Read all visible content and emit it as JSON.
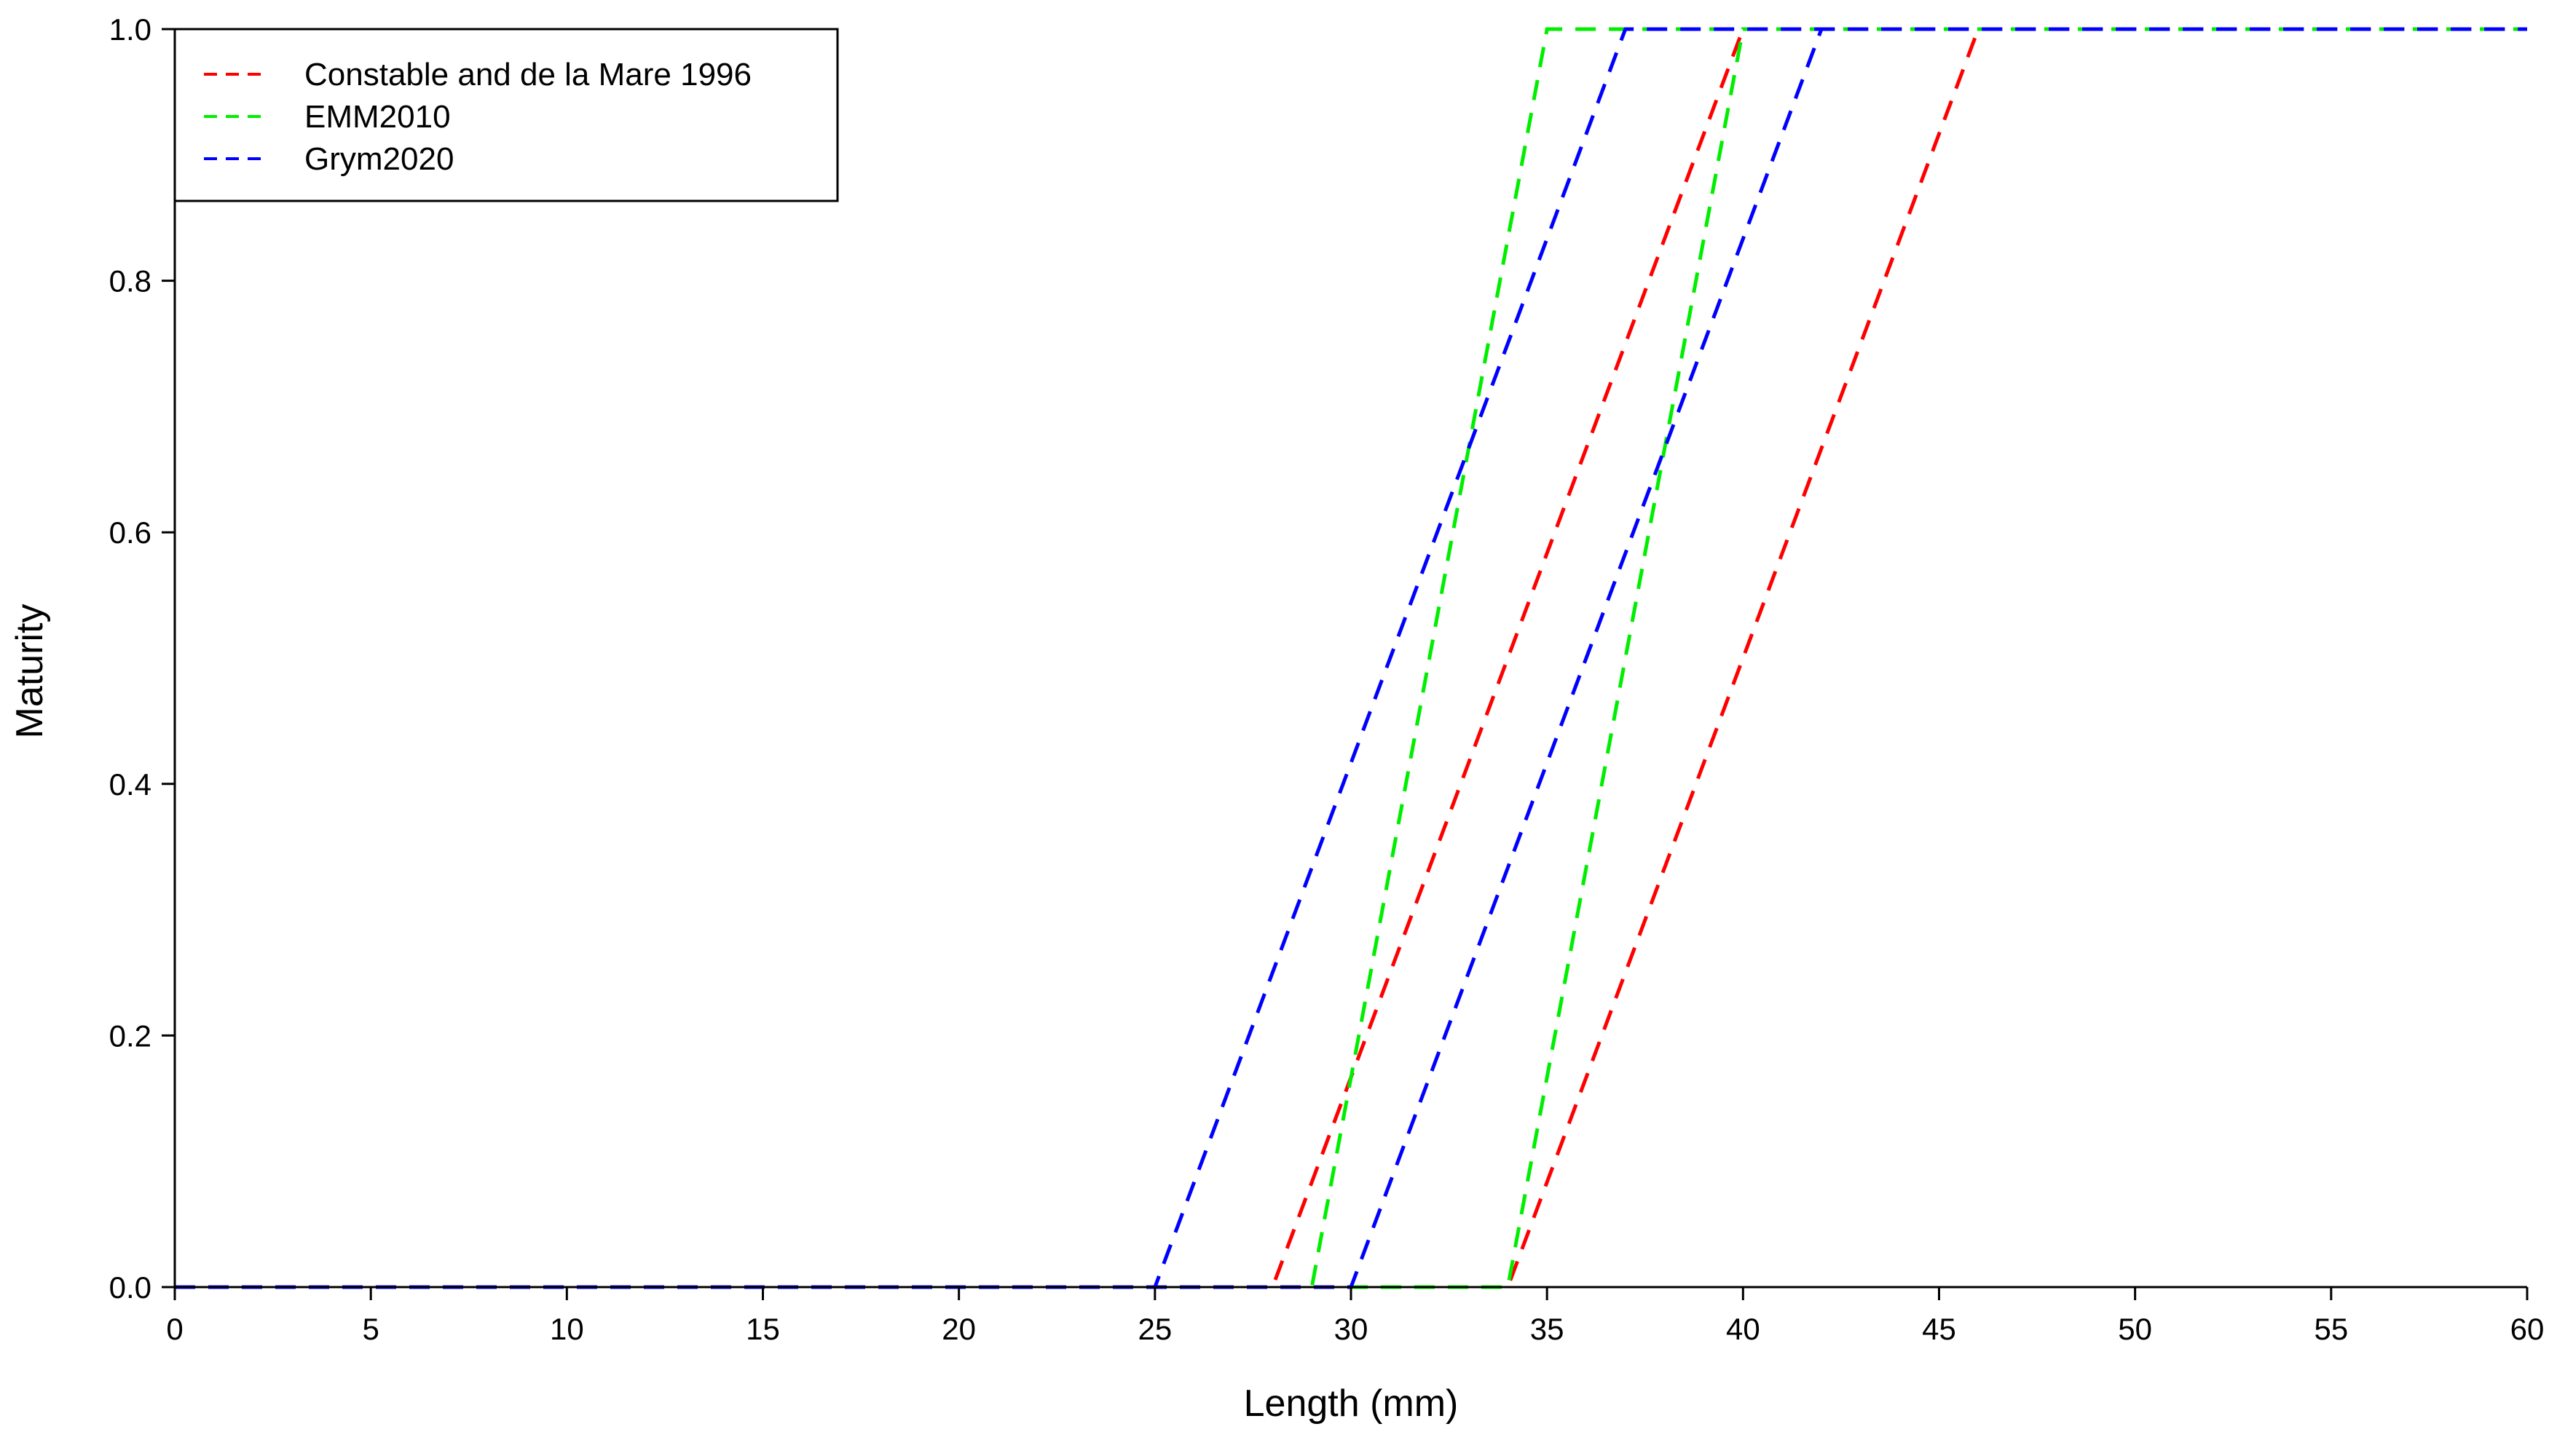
{
  "chart_data": {
    "type": "line",
    "xlabel": "Length (mm)",
    "ylabel": "Maturity",
    "xlim": [
      0,
      60
    ],
    "ylim": [
      0,
      1
    ],
    "xticks": [
      0,
      5,
      10,
      15,
      20,
      25,
      30,
      35,
      40,
      45,
      50,
      55,
      60
    ],
    "yticks": [
      "0.0",
      "0.2",
      "0.4",
      "0.6",
      "0.8",
      "1.0"
    ],
    "grid": false,
    "legend_position": "top-left",
    "line_style": "dashed",
    "series": [
      {
        "name": "Constable and de la Mare 1996",
        "color": "#ff0000",
        "lines": [
          [
            [
              0,
              0
            ],
            [
              28,
              0
            ],
            [
              40,
              1
            ],
            [
              60,
              1
            ]
          ],
          [
            [
              0,
              0
            ],
            [
              34,
              0
            ],
            [
              46,
              1
            ],
            [
              60,
              1
            ]
          ]
        ]
      },
      {
        "name": "EMM2010",
        "color": "#00ee00",
        "lines": [
          [
            [
              0,
              0
            ],
            [
              29,
              0
            ],
            [
              35,
              1
            ],
            [
              60,
              1
            ]
          ],
          [
            [
              0,
              0
            ],
            [
              34,
              0
            ],
            [
              40,
              1
            ],
            [
              60,
              1
            ]
          ]
        ]
      },
      {
        "name": "Grym2020",
        "color": "#0000ff",
        "lines": [
          [
            [
              0,
              0
            ],
            [
              25,
              0
            ],
            [
              37,
              1
            ],
            [
              60,
              1
            ]
          ],
          [
            [
              0,
              0
            ],
            [
              30,
              0
            ],
            [
              42,
              1
            ],
            [
              60,
              1
            ]
          ]
        ]
      }
    ]
  }
}
